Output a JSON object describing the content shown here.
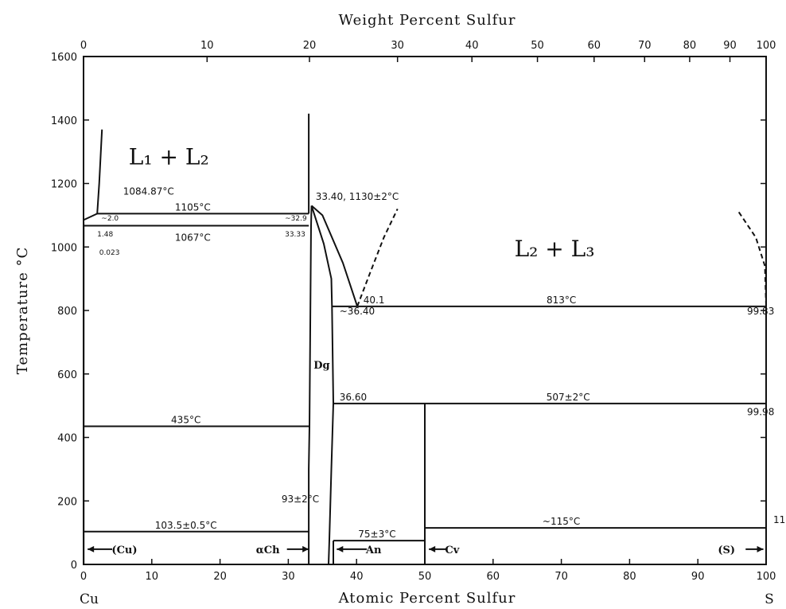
{
  "chart_data": {
    "type": "phase-diagram",
    "title": "",
    "top_axis_title": "Weight Percent Sulfur",
    "bottom_axis_title": "Atomic Percent Sulfur",
    "ylabel": "Temperature °C",
    "xlim": [
      0,
      100
    ],
    "ylim": [
      0,
      1600
    ],
    "x_ticks": [
      0,
      10,
      20,
      30,
      40,
      50,
      60,
      70,
      80,
      90,
      100
    ],
    "y_ticks": [
      0,
      200,
      400,
      600,
      800,
      1000,
      1200,
      1400,
      1600
    ],
    "top_ticks": [
      {
        "wt": 0,
        "at": 0,
        "label": "0"
      },
      {
        "wt": 10,
        "at": 18.1,
        "label": "10"
      },
      {
        "wt": 20,
        "at": 33.1,
        "label": "20"
      },
      {
        "wt": 30,
        "at": 46.0,
        "label": "30"
      },
      {
        "wt": 40,
        "at": 56.9,
        "label": "40"
      },
      {
        "wt": 50,
        "at": 66.5,
        "label": "50"
      },
      {
        "wt": 60,
        "at": 74.8,
        "label": "60"
      },
      {
        "wt": 70,
        "at": 82.2,
        "label": "70"
      },
      {
        "wt": 80,
        "at": 88.8,
        "label": "80"
      },
      {
        "wt": 90,
        "at": 94.7,
        "label": "90"
      },
      {
        "wt": 100,
        "at": 100,
        "label": "100"
      }
    ],
    "left_element": "Cu",
    "right_element": "S",
    "region_labels": [
      {
        "text": "L₁ + L₂",
        "x": 12.5,
        "y": 1260
      },
      {
        "text": "L₂ + L₃",
        "x": 69,
        "y": 970
      }
    ],
    "isotherms": [
      {
        "temp": 1105,
        "x_from": 2.0,
        "x_to": 33.0,
        "label": "1105°C",
        "label_x": 16,
        "label_y": 1115
      },
      {
        "temp": 1067,
        "x_from": 0,
        "x_to": 33.0,
        "label": "1067°C",
        "label_x": 16,
        "label_y": 1020
      },
      {
        "temp": 813,
        "x_from": 36.4,
        "x_to": 100,
        "label": "813°C",
        "label_x": 70,
        "label_y": 823
      },
      {
        "temp": 507,
        "x_from": 36.6,
        "x_to": 100,
        "label": "507±2°C",
        "label_x": 71,
        "label_y": 517
      },
      {
        "temp": 435,
        "x_from": 0,
        "x_to": 33.0,
        "label": "435°C",
        "label_x": 15,
        "label_y": 445
      },
      {
        "temp": 103.5,
        "x_from": 0,
        "x_to": 33.0,
        "label": "103.5±0.5°C",
        "label_x": 15,
        "label_y": 113
      },
      {
        "temp": 115,
        "x_from": 50,
        "x_to": 100,
        "label": "~115°C",
        "label_x": 70,
        "label_y": 125
      },
      {
        "temp": 75,
        "x_from": 36.6,
        "x_to": 50,
        "label": "75±3°C",
        "label_x": 43,
        "label_y": 85
      }
    ],
    "phase_boundaries": [
      {
        "name": "Cu-liquidus",
        "points": [
          [
            0,
            1084.87
          ],
          [
            2.0,
            1105
          ],
          [
            2.3,
            1200
          ],
          [
            2.7,
            1370
          ]
        ]
      },
      {
        "name": "Cu-solid-solution",
        "points": [
          [
            0,
            1084.87
          ],
          [
            0.023,
            1067
          ],
          [
            0.023,
            0
          ]
        ]
      },
      {
        "name": "liquid-miscibility-left",
        "points": [
          [
            33.0,
            1105
          ],
          [
            33.0,
            1420
          ]
        ]
      },
      {
        "name": "Dg-liquidus-right",
        "points": [
          [
            33.4,
            1130
          ],
          [
            35,
            1100
          ],
          [
            38,
            950
          ],
          [
            40.1,
            813
          ]
        ]
      },
      {
        "name": "Dg-solvus-right",
        "points": [
          [
            33.4,
            1130
          ],
          [
            35.2,
            1010
          ],
          [
            36.3,
            900
          ],
          [
            36.4,
            813
          ],
          [
            36.5,
            650
          ],
          [
            36.6,
            507
          ],
          [
            36.3,
            300
          ],
          [
            36.0,
            70
          ],
          [
            35.9,
            0
          ]
        ]
      },
      {
        "name": "Dg-solvus-left",
        "points": [
          [
            33.4,
            1130
          ],
          [
            33.33,
            1067
          ],
          [
            33.1,
            435
          ],
          [
            33.0,
            300
          ],
          [
            33.0,
            0
          ]
        ]
      },
      {
        "name": "L2-L3-dashed-left",
        "points": [
          [
            40.1,
            813
          ],
          [
            42,
            920
          ],
          [
            44,
            1030
          ],
          [
            46,
            1120
          ]
        ]
      },
      {
        "name": "L2-L3-dashed-right",
        "points": [
          [
            96,
            1110
          ],
          [
            98.5,
            1030
          ],
          [
            99.83,
            940
          ],
          [
            100,
            813
          ]
        ]
      },
      {
        "name": "S-side",
        "points": [
          [
            100,
            0
          ],
          [
            100,
            800
          ]
        ]
      },
      {
        "name": "Cv-line",
        "points": [
          [
            50,
            507
          ],
          [
            50,
            0
          ]
        ]
      },
      {
        "name": "An-phase",
        "points": [
          [
            36.6,
            75
          ],
          [
            36.6,
            0
          ]
        ]
      }
    ],
    "annotations": [
      {
        "text": "1084.87°C",
        "x": 5.8,
        "y": 1165
      },
      {
        "text": "33.40, 1130±2°C",
        "x": 34,
        "y": 1148
      },
      {
        "text": "~2.0",
        "x": 2.6,
        "y": 1083,
        "small": true
      },
      {
        "text": "1.48",
        "x": 2.0,
        "y": 1033,
        "small": true
      },
      {
        "text": "0.023",
        "x": 2.3,
        "y": 975,
        "small": true
      },
      {
        "text": "~32.9",
        "x": 29.5,
        "y": 1083,
        "small": true
      },
      {
        "text": "33.33",
        "x": 29.5,
        "y": 1033,
        "small": true
      },
      {
        "text": "40.1",
        "x": 41,
        "y": 823
      },
      {
        "text": "~36.40",
        "x": 37.5,
        "y": 788
      },
      {
        "text": "99.83",
        "x": 97.2,
        "y": 788
      },
      {
        "text": "36.60",
        "x": 37.5,
        "y": 517
      },
      {
        "text": "99.98",
        "x": 97.2,
        "y": 470
      },
      {
        "text": "93±2°C",
        "x": 29,
        "y": 195
      },
      {
        "text": "11",
        "x": 101.5,
        "y": 131
      }
    ],
    "phase_labels": [
      {
        "text": "Dg",
        "x": 34.9,
        "y": 630
      },
      {
        "text": "(Cu)",
        "x": 6,
        "y": 48,
        "arrow": "left",
        "arrow_from": 4.2,
        "arrow_to": 0.6
      },
      {
        "text": "αCh",
        "x": 27,
        "y": 48,
        "arrow": "right",
        "arrow_from": 29.8,
        "arrow_to": 33.0
      },
      {
        "text": "An",
        "x": 42.5,
        "y": 48,
        "arrow": "left",
        "arrow_from": 41.5,
        "arrow_to": 37.1
      },
      {
        "text": "Cv",
        "x": 54,
        "y": 48,
        "arrow": "left",
        "arrow_from": 53.3,
        "arrow_to": 50.6
      },
      {
        "text": "(S)",
        "x": 94.2,
        "y": 48,
        "arrow": "right",
        "arrow_from": 97,
        "arrow_to": 99.6
      }
    ]
  }
}
